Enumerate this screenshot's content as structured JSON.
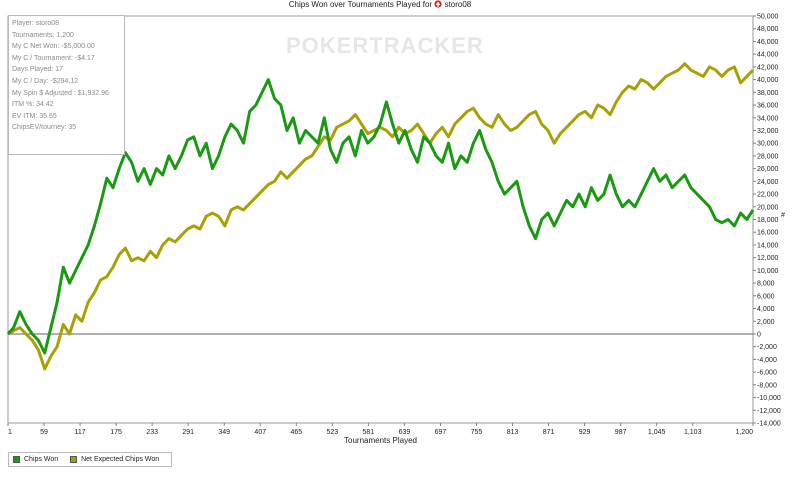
{
  "title": {
    "prefix": "Chips Won over Tournaments Played for",
    "player": "storo08",
    "logo_icon": "pokerstars-spade-logo-icon",
    "logo_color": "#d3221b"
  },
  "watermark": "POKERTRACKER",
  "stats": [
    "Player: storo08",
    "Tournaments: 1,200",
    "My C Net Won: -$5,000.00",
    "My C / Tournament: -$4.17",
    "Days Played: 17",
    "My C / Day: -$294.12",
    "My Spin $ Adjusted : $1,932.96",
    "ITM %: 34.42",
    "EV ITM: 35.65",
    "ChipsEV/tourney: 35"
  ],
  "chart_data": {
    "type": "line",
    "title": "Chips Won over Tournaments Played for storo08",
    "xlabel": "Tournaments Played",
    "ylabel": "#",
    "xlim": [
      1,
      1200
    ],
    "ylim": [
      -14000,
      50000
    ],
    "x_ticks": [
      "1",
      "59",
      "117",
      "175",
      "233",
      "291",
      "349",
      "407",
      "465",
      "523",
      "581",
      "639",
      "697",
      "755",
      "813",
      "871",
      "929",
      "987",
      "1,045",
      "1,103",
      "1,200"
    ],
    "y_ticks": [
      "50,000",
      "48,000",
      "46,000",
      "44,000",
      "42,000",
      "40,000",
      "38,000",
      "36,000",
      "34,000",
      "32,000",
      "30,000",
      "28,000",
      "26,000",
      "24,000",
      "22,000",
      "20,000",
      "18,000",
      "16,000",
      "14,000",
      "12,000",
      "10,000",
      "8,000",
      "6,000",
      "4,000",
      "2,000",
      "0",
      "-2,000",
      "-4,000",
      "-6,000",
      "-8,000",
      "-10,000",
      "-12,000",
      "-14,000"
    ],
    "grid": false,
    "zero_line": true,
    "legend_position": "bottom-left",
    "series": [
      {
        "name": "Chips Won",
        "color": "#1a9a12",
        "x": [
          1,
          10,
          20,
          30,
          40,
          50,
          60,
          70,
          80,
          90,
          100,
          110,
          120,
          130,
          140,
          150,
          160,
          170,
          180,
          190,
          200,
          210,
          220,
          230,
          240,
          250,
          260,
          270,
          280,
          290,
          300,
          310,
          320,
          330,
          340,
          350,
          360,
          370,
          380,
          390,
          400,
          410,
          420,
          430,
          440,
          450,
          460,
          470,
          480,
          490,
          500,
          510,
          520,
          530,
          540,
          550,
          560,
          570,
          580,
          590,
          600,
          610,
          620,
          630,
          640,
          650,
          660,
          670,
          680,
          690,
          700,
          710,
          720,
          730,
          740,
          750,
          760,
          770,
          780,
          790,
          800,
          810,
          820,
          830,
          840,
          850,
          860,
          870,
          880,
          890,
          900,
          910,
          920,
          930,
          940,
          950,
          960,
          970,
          980,
          990,
          1000,
          1010,
          1020,
          1030,
          1040,
          1050,
          1060,
          1070,
          1080,
          1090,
          1100,
          1110,
          1120,
          1130,
          1140,
          1150,
          1160,
          1170,
          1180,
          1190,
          1200
        ],
        "values": [
          0,
          1000,
          3500,
          1500,
          0,
          -1000,
          -3000,
          1000,
          5000,
          10500,
          8000,
          10000,
          12000,
          14000,
          17000,
          20500,
          24500,
          23000,
          26000,
          28500,
          27000,
          24000,
          26000,
          23500,
          26000,
          25000,
          28000,
          26000,
          28000,
          30500,
          31000,
          28000,
          30000,
          26000,
          28000,
          31000,
          33000,
          32000,
          30000,
          35000,
          36000,
          38000,
          40000,
          37000,
          36000,
          32000,
          34000,
          30000,
          32000,
          31000,
          30000,
          34000,
          29000,
          27000,
          30000,
          31000,
          28000,
          32000,
          30000,
          31000,
          33000,
          36500,
          33000,
          30000,
          32000,
          29000,
          27000,
          31000,
          30000,
          28000,
          27000,
          30000,
          26000,
          28000,
          27000,
          30000,
          32000,
          29000,
          27000,
          24000,
          22000,
          23000,
          24000,
          20000,
          17000,
          15000,
          18000,
          19000,
          17000,
          19000,
          21000,
          20000,
          22000,
          20000,
          23000,
          21000,
          22000,
          25000,
          22000,
          20000,
          21000,
          20000,
          22000,
          24000,
          26000,
          24000,
          25000,
          23000,
          24000,
          25000,
          23000,
          22000,
          21000,
          20000,
          18000,
          17500,
          18000,
          17000,
          19000,
          18000,
          19500
        ]
      },
      {
        "name": "Net Expected Chips Won",
        "color": "#a8a004",
        "x": [
          1,
          10,
          20,
          30,
          40,
          50,
          60,
          70,
          80,
          90,
          100,
          110,
          120,
          130,
          140,
          150,
          160,
          170,
          180,
          190,
          200,
          210,
          220,
          230,
          240,
          250,
          260,
          270,
          280,
          290,
          300,
          310,
          320,
          330,
          340,
          350,
          360,
          370,
          380,
          390,
          400,
          410,
          420,
          430,
          440,
          450,
          460,
          470,
          480,
          490,
          500,
          510,
          520,
          530,
          540,
          550,
          560,
          570,
          580,
          590,
          600,
          610,
          620,
          630,
          640,
          650,
          660,
          670,
          680,
          690,
          700,
          710,
          720,
          730,
          740,
          750,
          760,
          770,
          780,
          790,
          800,
          810,
          820,
          830,
          840,
          850,
          860,
          870,
          880,
          890,
          900,
          910,
          920,
          930,
          940,
          950,
          960,
          970,
          980,
          990,
          1000,
          1010,
          1020,
          1030,
          1040,
          1050,
          1060,
          1070,
          1080,
          1090,
          1100,
          1110,
          1120,
          1130,
          1140,
          1150,
          1160,
          1170,
          1180,
          1190,
          1200
        ],
        "values": [
          0,
          500,
          1000,
          0,
          -1000,
          -2500,
          -5500,
          -3500,
          -2000,
          1500,
          0,
          3000,
          2000,
          5000,
          6500,
          8500,
          9000,
          10500,
          12500,
          13500,
          11500,
          12000,
          11500,
          13000,
          12000,
          14000,
          15000,
          14500,
          15500,
          16500,
          17000,
          16500,
          18500,
          19000,
          18500,
          17000,
          19500,
          20000,
          19500,
          20500,
          21500,
          22500,
          23500,
          24000,
          25500,
          24500,
          25500,
          26500,
          27500,
          28000,
          29500,
          31000,
          30500,
          32500,
          33000,
          33500,
          34500,
          33000,
          31500,
          32000,
          32500,
          32000,
          31000,
          32500,
          31500,
          32000,
          33000,
          31500,
          30000,
          31500,
          32500,
          31000,
          33000,
          34000,
          35000,
          35500,
          34000,
          33000,
          32500,
          34500,
          33000,
          32000,
          32500,
          33500,
          34500,
          35000,
          33000,
          32000,
          30000,
          31500,
          32500,
          33500,
          34500,
          35000,
          34000,
          36000,
          35500,
          34500,
          36500,
          38000,
          39000,
          38500,
          40000,
          39500,
          38500,
          39500,
          40500,
          41000,
          41500,
          42500,
          41500,
          41000,
          40500,
          42000,
          41500,
          40500,
          41500,
          42000,
          39500,
          40500,
          41500
        ]
      }
    ]
  }
}
